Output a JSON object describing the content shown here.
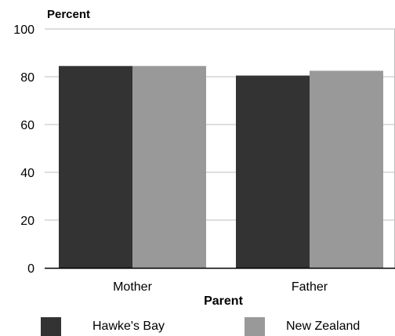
{
  "chart_data": {
    "type": "bar",
    "ylabel": "Percent",
    "xlabel": "Parent",
    "categories": [
      "Mother",
      "Father"
    ],
    "series": [
      {
        "name": "Hawke's Bay",
        "color": "#333333",
        "values": [
          84.5,
          80.5
        ]
      },
      {
        "name": "New Zealand",
        "color": "#999999",
        "values": [
          84.5,
          82.5
        ]
      }
    ],
    "ylim": [
      0,
      100
    ],
    "yticks": [
      0,
      20,
      40,
      60,
      80,
      100
    ],
    "grid": true,
    "legend_position": "bottom"
  }
}
